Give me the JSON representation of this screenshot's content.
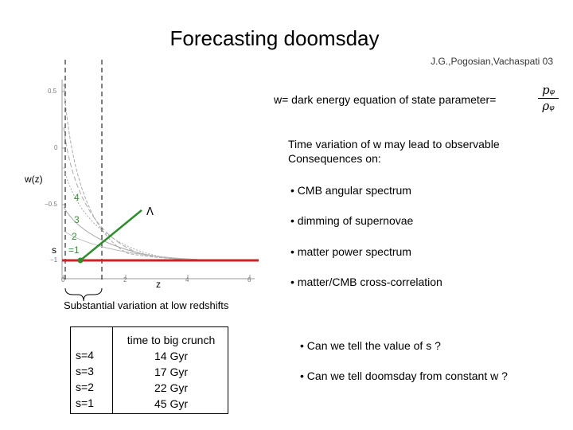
{
  "title": "Forecasting doomsday",
  "authors": "J.G.,Pogosian,Vachaspati 03",
  "definition": {
    "text": "w= dark energy equation of state parameter=",
    "numerator": "p",
    "denominator": "ρ",
    "subscript": "φ"
  },
  "time_variation": {
    "line1": "Time variation of w may lead to observable",
    "line2": "Consequences on:"
  },
  "bullets": [
    "• CMB angular spectrum",
    "• dimming of supernovae",
    "• matter power spectrum",
    "• matter/CMB cross-correlation"
  ],
  "plot": {
    "ylabel": "w(z)",
    "xlabel": "z",
    "yticks": [
      "0.5",
      "0",
      "−0.5",
      "−1"
    ],
    "xticks": [
      "0",
      "2",
      "4",
      "6"
    ],
    "curve_labels": [
      "4",
      "3",
      "2",
      "=1"
    ],
    "s_label": "s",
    "lambda_symbol": "Λ",
    "annotation": "Substantial variation at low redshifts"
  },
  "table": {
    "header": "time to big crunch",
    "rows": [
      {
        "s": "s=4",
        "time": "14 Gyr"
      },
      {
        "s": "s=3",
        "time": "17 Gyr"
      },
      {
        "s": "s=2",
        "time": "22 Gyr"
      },
      {
        "s": "s=1",
        "time": "45 Gyr"
      }
    ]
  },
  "questions": [
    "• Can we tell the value of  s  ?",
    "• Can we tell doomsday from constant  w  ?"
  ],
  "colors": {
    "accent_green": "#2e8b2e",
    "constant_w_line": "#cc2222",
    "curves": "#9a9a9a"
  }
}
